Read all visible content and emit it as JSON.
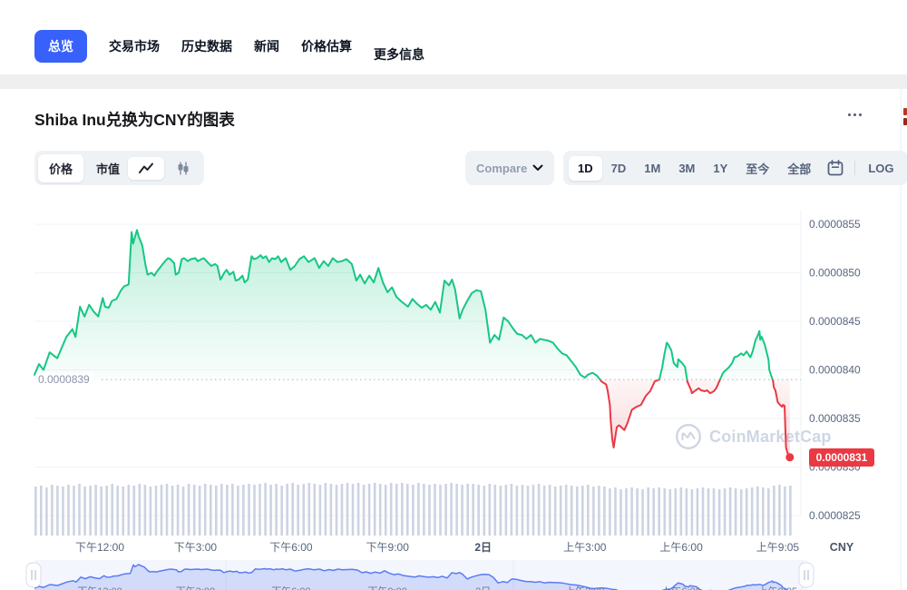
{
  "nav": {
    "tabs": [
      {
        "label": "总览",
        "active": true
      },
      {
        "label": "交易市场",
        "active": false
      },
      {
        "label": "历史数据",
        "active": false
      },
      {
        "label": "新闻",
        "active": false
      },
      {
        "label": "价格估算",
        "active": false
      },
      {
        "label": "更多信息",
        "active": false
      }
    ]
  },
  "header": {
    "title": "Shiba Inu兑换为CNY的图表"
  },
  "controls": {
    "metric_options": [
      {
        "label": "价格",
        "selected": true
      },
      {
        "label": "市值",
        "selected": false
      }
    ],
    "chart_types": [
      {
        "name": "line",
        "selected": true
      },
      {
        "name": "candlestick",
        "selected": false
      }
    ],
    "compare_label": "Compare",
    "ranges": [
      {
        "label": "1D",
        "selected": true
      },
      {
        "label": "7D",
        "selected": false
      },
      {
        "label": "1M",
        "selected": false
      },
      {
        "label": "3M",
        "selected": false
      },
      {
        "label": "1Y",
        "selected": false
      },
      {
        "label": "至今",
        "selected": false
      },
      {
        "label": "全部",
        "selected": false
      }
    ],
    "log_label": "LOG"
  },
  "watermark": {
    "text": "CoinMarketCap"
  },
  "chart_data": {
    "type": "area",
    "quote_label": "CNY",
    "price_scale": "1e-7",
    "colors": {
      "up": "#16c784",
      "down": "#ea3943",
      "accent": "#3861fb",
      "volume": "#ccd3e2",
      "axis": "#58667e",
      "navigator": "#5b7cf2",
      "last_badge": "#ea3943"
    },
    "y_ticks": [
      {
        "label": "0.0000855",
        "v": 85.5
      },
      {
        "label": "0.0000850",
        "v": 85.0
      },
      {
        "label": "0.0000845",
        "v": 84.5
      },
      {
        "label": "0.0000840",
        "v": 84.0
      },
      {
        "label": "0.0000835",
        "v": 83.5
      },
      {
        "label": "0.0000830",
        "v": 83.0
      },
      {
        "label": "0.0000825",
        "v": 82.5
      }
    ],
    "x_ticks": [
      {
        "label": "下午12:00",
        "t": 0.086,
        "bold": false
      },
      {
        "label": "下午3:00",
        "t": 0.212,
        "bold": false
      },
      {
        "label": "下午6:00",
        "t": 0.338,
        "bold": false
      },
      {
        "label": "下午9:00",
        "t": 0.465,
        "bold": false
      },
      {
        "label": "2日",
        "t": 0.591,
        "bold": true
      },
      {
        "label": "上午3:00",
        "t": 0.725,
        "bold": false
      },
      {
        "label": "上午6:00",
        "t": 0.852,
        "bold": false
      },
      {
        "label": "上午9:05",
        "t": 0.979,
        "bold": false
      }
    ],
    "baseline": {
      "label": "0.0000839",
      "v": 83.9
    },
    "last_price": {
      "label": "0.0000831",
      "v": 83.1
    },
    "points": [
      [
        0,
        83.95
      ],
      [
        0.006,
        84.06
      ],
      [
        0.012,
        84.0
      ],
      [
        0.02,
        84.18
      ],
      [
        0.03,
        84.12
      ],
      [
        0.042,
        84.34
      ],
      [
        0.05,
        84.42
      ],
      [
        0.054,
        84.34
      ],
      [
        0.06,
        84.65
      ],
      [
        0.066,
        84.55
      ],
      [
        0.072,
        84.67
      ],
      [
        0.078,
        84.6
      ],
      [
        0.084,
        84.55
      ],
      [
        0.09,
        84.74
      ],
      [
        0.093,
        84.65
      ],
      [
        0.098,
        84.64
      ],
      [
        0.102,
        84.71
      ],
      [
        0.108,
        84.73
      ],
      [
        0.114,
        84.82
      ],
      [
        0.118,
        84.86
      ],
      [
        0.124,
        84.88
      ],
      [
        0.128,
        85.42
      ],
      [
        0.13,
        85.3
      ],
      [
        0.135,
        85.44
      ],
      [
        0.137,
        85.38
      ],
      [
        0.142,
        85.28
      ],
      [
        0.146,
        85.09
      ],
      [
        0.149,
        84.98
      ],
      [
        0.154,
        85.0
      ],
      [
        0.158,
        84.97
      ],
      [
        0.161,
        85.01
      ],
      [
        0.167,
        85.07
      ],
      [
        0.172,
        85.12
      ],
      [
        0.176,
        85.15
      ],
      [
        0.179,
        85.14
      ],
      [
        0.184,
        85.1
      ],
      [
        0.186,
        84.98
      ],
      [
        0.19,
        85.0
      ],
      [
        0.194,
        85.14
      ],
      [
        0.197,
        85.15
      ],
      [
        0.202,
        85.12
      ],
      [
        0.206,
        85.14
      ],
      [
        0.212,
        85.15
      ],
      [
        0.215,
        85.12
      ],
      [
        0.22,
        85.14
      ],
      [
        0.223,
        85.15
      ],
      [
        0.229,
        85.1
      ],
      [
        0.233,
        85.07
      ],
      [
        0.238,
        85.09
      ],
      [
        0.241,
        85.07
      ],
      [
        0.245,
        84.93
      ],
      [
        0.25,
        85.0
      ],
      [
        0.253,
        85.03
      ],
      [
        0.257,
        84.98
      ],
      [
        0.262,
        85.01
      ],
      [
        0.265,
        84.92
      ],
      [
        0.269,
        84.93
      ],
      [
        0.274,
        84.97
      ],
      [
        0.277,
        84.9
      ],
      [
        0.281,
        84.93
      ],
      [
        0.286,
        85.17
      ],
      [
        0.289,
        85.14
      ],
      [
        0.293,
        85.15
      ],
      [
        0.298,
        85.18
      ],
      [
        0.301,
        85.15
      ],
      [
        0.305,
        85.17
      ],
      [
        0.309,
        85.11
      ],
      [
        0.313,
        85.15
      ],
      [
        0.317,
        85.14
      ],
      [
        0.321,
        85.17
      ],
      [
        0.325,
        85.11
      ],
      [
        0.331,
        85.15
      ],
      [
        0.337,
        85.03
      ],
      [
        0.343,
        85.07
      ],
      [
        0.349,
        85.14
      ],
      [
        0.355,
        85.17
      ],
      [
        0.361,
        85.11
      ],
      [
        0.369,
        85.15
      ],
      [
        0.375,
        85.05
      ],
      [
        0.381,
        85.12
      ],
      [
        0.387,
        85.07
      ],
      [
        0.393,
        85.15
      ],
      [
        0.399,
        85.11
      ],
      [
        0.405,
        85.12
      ],
      [
        0.411,
        85.14
      ],
      [
        0.418,
        85.09
      ],
      [
        0.424,
        84.92
      ],
      [
        0.429,
        84.98
      ],
      [
        0.435,
        84.89
      ],
      [
        0.441,
        84.97
      ],
      [
        0.447,
        84.9
      ],
      [
        0.453,
        85.05
      ],
      [
        0.459,
        84.9
      ],
      [
        0.465,
        84.8
      ],
      [
        0.471,
        84.85
      ],
      [
        0.477,
        84.75
      ],
      [
        0.484,
        84.7
      ],
      [
        0.492,
        84.65
      ],
      [
        0.498,
        84.73
      ],
      [
        0.504,
        84.68
      ],
      [
        0.51,
        84.64
      ],
      [
        0.516,
        84.67
      ],
      [
        0.522,
        84.62
      ],
      [
        0.528,
        84.7
      ],
      [
        0.534,
        84.59
      ],
      [
        0.54,
        84.92
      ],
      [
        0.546,
        84.87
      ],
      [
        0.55,
        84.93
      ],
      [
        0.554,
        84.83
      ],
      [
        0.56,
        84.53
      ],
      [
        0.564,
        84.62
      ],
      [
        0.57,
        84.71
      ],
      [
        0.576,
        84.79
      ],
      [
        0.582,
        84.82
      ],
      [
        0.588,
        84.81
      ],
      [
        0.594,
        84.62
      ],
      [
        0.6,
        84.28
      ],
      [
        0.606,
        84.36
      ],
      [
        0.612,
        84.31
      ],
      [
        0.618,
        84.54
      ],
      [
        0.624,
        84.5
      ],
      [
        0.63,
        84.43
      ],
      [
        0.636,
        84.37
      ],
      [
        0.642,
        84.36
      ],
      [
        0.648,
        84.32
      ],
      [
        0.654,
        84.36
      ],
      [
        0.66,
        84.28
      ],
      [
        0.666,
        84.32
      ],
      [
        0.671,
        84.31
      ],
      [
        0.677,
        84.3
      ],
      [
        0.683,
        84.28
      ],
      [
        0.689,
        84.22
      ],
      [
        0.695,
        84.17
      ],
      [
        0.701,
        84.15
      ],
      [
        0.707,
        84.09
      ],
      [
        0.713,
        84.03
      ],
      [
        0.719,
        83.95
      ],
      [
        0.725,
        83.92
      ],
      [
        0.729,
        83.95
      ],
      [
        0.735,
        83.97
      ],
      [
        0.741,
        83.94
      ],
      [
        0.747,
        83.88
      ],
      [
        0.753,
        83.85
      ],
      [
        0.755,
        83.79
      ],
      [
        0.758,
        83.64
      ],
      [
        0.759,
        83.48
      ],
      [
        0.761,
        83.29
      ],
      [
        0.763,
        83.2
      ],
      [
        0.767,
        83.41
      ],
      [
        0.77,
        83.43
      ],
      [
        0.773,
        83.41
      ],
      [
        0.777,
        83.38
      ],
      [
        0.781,
        83.45
      ],
      [
        0.787,
        83.59
      ],
      [
        0.793,
        83.62
      ],
      [
        0.799,
        83.64
      ],
      [
        0.805,
        83.73
      ],
      [
        0.811,
        83.78
      ],
      [
        0.817,
        83.88
      ],
      [
        0.823,
        83.9
      ],
      [
        0.827,
        84.03
      ],
      [
        0.83,
        84.17
      ],
      [
        0.833,
        84.28
      ],
      [
        0.835,
        84.26
      ],
      [
        0.839,
        84.2
      ],
      [
        0.842,
        84.07
      ],
      [
        0.847,
        84.03
      ],
      [
        0.848,
        84.11
      ],
      [
        0.853,
        84.07
      ],
      [
        0.857,
        84.03
      ],
      [
        0.86,
        83.88
      ],
      [
        0.865,
        83.79
      ],
      [
        0.866,
        83.76
      ],
      [
        0.871,
        83.79
      ],
      [
        0.875,
        83.81
      ],
      [
        0.878,
        83.79
      ],
      [
        0.883,
        83.78
      ],
      [
        0.886,
        83.79
      ],
      [
        0.89,
        83.76
      ],
      [
        0.895,
        83.78
      ],
      [
        0.898,
        83.81
      ],
      [
        0.902,
        83.88
      ],
      [
        0.907,
        83.97
      ],
      [
        0.911,
        84.0
      ],
      [
        0.914,
        84.02
      ],
      [
        0.919,
        84.07
      ],
      [
        0.922,
        84.13
      ],
      [
        0.926,
        84.14
      ],
      [
        0.931,
        84.17
      ],
      [
        0.934,
        84.15
      ],
      [
        0.938,
        84.19
      ],
      [
        0.943,
        84.13
      ],
      [
        0.946,
        84.19
      ],
      [
        0.95,
        84.31
      ],
      [
        0.952,
        84.34
      ],
      [
        0.955,
        84.4
      ],
      [
        0.956,
        84.31
      ],
      [
        0.958,
        84.34
      ],
      [
        0.962,
        84.26
      ],
      [
        0.967,
        84.1
      ],
      [
        0.968,
        84.0
      ],
      [
        0.973,
        83.88
      ],
      [
        0.974,
        83.82
      ],
      [
        0.976,
        83.79
      ],
      [
        0.979,
        83.67
      ],
      [
        0.982,
        83.64
      ],
      [
        0.985,
        83.62
      ],
      [
        0.986,
        83.64
      ],
      [
        0.988,
        83.63
      ],
      [
        0.99,
        83.2
      ],
      [
        0.993,
        83.12
      ],
      [
        0.995,
        83.1
      ]
    ],
    "volume_heights": [
      54,
      55,
      53,
      56,
      55,
      54,
      56,
      55,
      57,
      54,
      55,
      56,
      54,
      55,
      57,
      55,
      54,
      56,
      55,
      57,
      56,
      54,
      55,
      56,
      57,
      55,
      56,
      54,
      57,
      56,
      55,
      57,
      56,
      55,
      57,
      56,
      57,
      55,
      56,
      57,
      56,
      57,
      58,
      56,
      57,
      55,
      57,
      58,
      56,
      57,
      58,
      57,
      56,
      58,
      57,
      56,
      57,
      58,
      57,
      58,
      56,
      57,
      58,
      57,
      56,
      58,
      57,
      58,
      57,
      56,
      58,
      57,
      56,
      57,
      56,
      57,
      58,
      57,
      56,
      57,
      57,
      56,
      55,
      57,
      56,
      55,
      56,
      57,
      55,
      56,
      55,
      56,
      57,
      55,
      56,
      54,
      55,
      56,
      55,
      54,
      55,
      56,
      54,
      55,
      54,
      52,
      53,
      51,
      52,
      53,
      52,
      51,
      53,
      52,
      53,
      52,
      51,
      52,
      53,
      52,
      51,
      52,
      53,
      52,
      52,
      51,
      52,
      53,
      52,
      51,
      52,
      53,
      54,
      53,
      52,
      55,
      56,
      54,
      55
    ]
  }
}
